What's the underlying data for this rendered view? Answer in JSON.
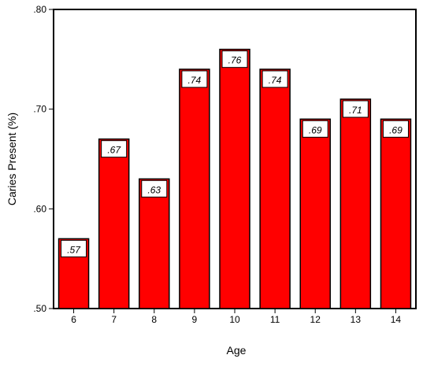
{
  "chart_data": {
    "type": "bar",
    "categories": [
      "6",
      "7",
      "8",
      "9",
      "10",
      "11",
      "12",
      "13",
      "14"
    ],
    "values": [
      0.57,
      0.67,
      0.63,
      0.74,
      0.76,
      0.74,
      0.69,
      0.71,
      0.69
    ],
    "data_labels": [
      ".57",
      ".67",
      ".63",
      ".74",
      ".76",
      ".74",
      ".69",
      ".71",
      ".69"
    ],
    "xlabel": "Age",
    "ylabel": "Caries Present (%)",
    "ylim": [
      0.5,
      0.8
    ],
    "yticks": [
      0.5,
      0.6,
      0.7,
      0.8
    ],
    "ytick_labels": [
      ".50",
      ".60",
      ".70",
      ".80"
    ],
    "grid": false,
    "colors": {
      "bar_fill": "#ff0000",
      "bar_stroke": "#000000",
      "label_fill": "#ffffff"
    }
  }
}
